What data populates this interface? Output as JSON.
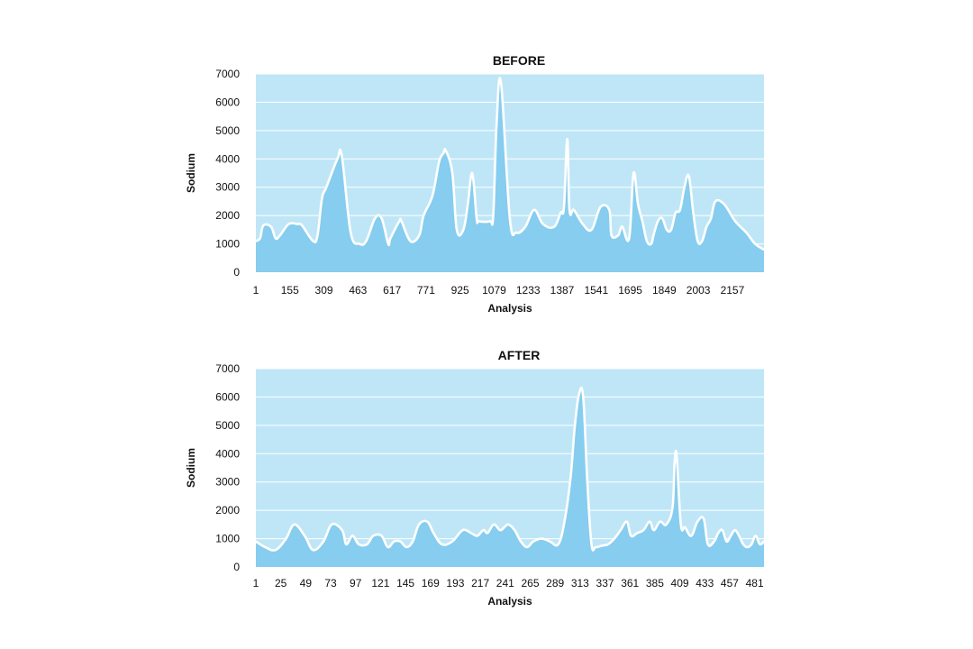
{
  "colors": {
    "plot_background": "#bfe6f7",
    "area_fill": "#86cdef",
    "line": "#ffffff",
    "gridline": "#ffffff",
    "text": "#111111"
  },
  "chart_data": [
    {
      "type": "area",
      "title": "BEFORE",
      "xlabel": "Analysis",
      "ylabel": "Sodium",
      "ylim": [
        0,
        7000
      ],
      "xlim": [
        1,
        2300
      ],
      "yticks": [
        0,
        1000,
        2000,
        3000,
        4000,
        5000,
        6000,
        7000
      ],
      "xticks": [
        1,
        155,
        309,
        463,
        617,
        771,
        925,
        1079,
        1233,
        1387,
        1541,
        1695,
        1849,
        2003,
        2157
      ],
      "grid": true,
      "series": [
        {
          "x": [
            1,
            20,
            35,
            70,
            90,
            110,
            150,
            190,
            210,
            260,
            280,
            300,
            320,
            370,
            390,
            430,
            470,
            500,
            540,
            570,
            600,
            610,
            650,
            660,
            700,
            740,
            760,
            800,
            830,
            850,
            860,
            890,
            910,
            940,
            960,
            980,
            1000,
            1010,
            1060,
            1075,
            1090,
            1110,
            1150,
            1180,
            1220,
            1260,
            1300,
            1350,
            1380,
            1395,
            1410,
            1420,
            1440,
            1480,
            1520,
            1560,
            1600,
            1610,
            1640,
            1650,
            1660,
            1690,
            1710,
            1730,
            1750,
            1770,
            1790,
            1800,
            1820,
            1840,
            1860,
            1880,
            1900,
            1920,
            1940,
            1960,
            1980,
            2000,
            2020,
            2040,
            2060,
            2080,
            2120,
            2170,
            2220,
            2260,
            2300
          ],
          "y": [
            1100,
            1200,
            1650,
            1600,
            1200,
            1300,
            1700,
            1700,
            1650,
            1100,
            1300,
            2600,
            3000,
            4000,
            4100,
            1400,
            1000,
            1100,
            1900,
            1900,
            1000,
            1200,
            1800,
            1800,
            1100,
            1300,
            2000,
            2700,
            3900,
            4200,
            4300,
            3500,
            1500,
            1500,
            2400,
            3500,
            1900,
            1800,
            1800,
            2000,
            5200,
            6700,
            1900,
            1400,
            1600,
            2200,
            1700,
            1600,
            2100,
            2300,
            4700,
            2200,
            2200,
            1700,
            1500,
            2300,
            2200,
            1300,
            1300,
            1500,
            1600,
            1200,
            3500,
            2400,
            1800,
            1100,
            1000,
            1300,
            1800,
            1900,
            1500,
            1500,
            2100,
            2200,
            3000,
            3400,
            2100,
            1100,
            1100,
            1600,
            1900,
            2500,
            2400,
            1800,
            1400,
            1000,
            800
          ]
        }
      ]
    },
    {
      "type": "area",
      "title": "AFTER",
      "xlabel": "Analysis",
      "ylabel": "Sodium",
      "ylim": [
        0,
        7000
      ],
      "xlim": [
        1,
        490
      ],
      "yticks": [
        0,
        1000,
        2000,
        3000,
        4000,
        5000,
        6000,
        7000
      ],
      "xticks": [
        1,
        25,
        49,
        73,
        97,
        121,
        145,
        169,
        193,
        217,
        241,
        265,
        289,
        313,
        337,
        361,
        385,
        409,
        433,
        457,
        481
      ],
      "grid": true,
      "series": [
        {
          "x": [
            1,
            10,
            20,
            30,
            38,
            48,
            56,
            66,
            74,
            84,
            88,
            94,
            100,
            108,
            114,
            122,
            128,
            134,
            140,
            146,
            152,
            158,
            166,
            172,
            180,
            190,
            200,
            208,
            214,
            220,
            224,
            230,
            236,
            240,
            244,
            250,
            256,
            262,
            268,
            276,
            284,
            292,
            298,
            304,
            308,
            312,
            316,
            320,
            324,
            328,
            334,
            340,
            346,
            352,
            358,
            362,
            368,
            374,
            380,
            384,
            390,
            396,
            402,
            404,
            406,
            410,
            414,
            420,
            426,
            432,
            436,
            442,
            446,
            450,
            454,
            458,
            462,
            466,
            470,
            474,
            478,
            482,
            486,
            490
          ],
          "y": [
            900,
            700,
            600,
            1000,
            1500,
            1100,
            600,
            900,
            1500,
            1300,
            800,
            1100,
            800,
            800,
            1100,
            1100,
            700,
            900,
            900,
            700,
            900,
            1500,
            1600,
            1200,
            800,
            900,
            1300,
            1200,
            1100,
            1300,
            1200,
            1500,
            1300,
            1400,
            1500,
            1300,
            900,
            700,
            900,
            1000,
            900,
            800,
            1600,
            3200,
            5000,
            6100,
            6000,
            3000,
            800,
            700,
            750,
            800,
            1000,
            1300,
            1600,
            1100,
            1200,
            1300,
            1600,
            1300,
            1600,
            1500,
            2100,
            3700,
            3900,
            1500,
            1400,
            1100,
            1600,
            1700,
            800,
            900,
            1200,
            1300,
            900,
            1100,
            1300,
            1100,
            800,
            700,
            800,
            1100,
            800,
            900
          ]
        }
      ]
    }
  ]
}
